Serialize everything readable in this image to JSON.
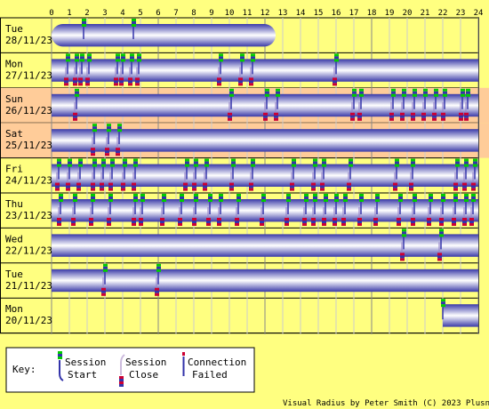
{
  "chart_data": {
    "type": "timeline",
    "title": "",
    "x_ticks": [
      "0",
      "1",
      "2",
      "3",
      "4",
      "5",
      "6",
      "7",
      "8",
      "9",
      "10",
      "11",
      "12",
      "13",
      "14",
      "15",
      "16",
      "17",
      "18",
      "19",
      "20",
      "21",
      "22",
      "23",
      "24"
    ],
    "xlim": [
      0,
      24
    ],
    "days": [
      {
        "day": "Tue",
        "date": "28/11/23",
        "weekend": false,
        "sessions": [
          [
            0,
            12.6
          ]
        ],
        "starts": [
          1.8,
          4.6
        ],
        "closes": []
      },
      {
        "day": "Mon",
        "date": "27/11/23",
        "weekend": false,
        "sessions": [
          [
            0,
            24
          ]
        ],
        "starts": [
          0.9,
          1.4,
          1.7,
          2.1,
          3.7,
          4.0,
          4.5,
          4.9,
          9.5,
          10.7,
          11.3,
          16.0
        ],
        "closes": [
          0.8,
          1.3,
          1.6,
          2.0,
          3.6,
          3.9,
          4.4,
          4.8,
          9.4,
          10.6,
          11.2,
          15.9
        ]
      },
      {
        "day": "Sun",
        "date": "26/11/23",
        "weekend": true,
        "sessions": [
          [
            0,
            24
          ]
        ],
        "starts": [
          1.4,
          10.1,
          12.1,
          12.7,
          17.0,
          17.4,
          19.2,
          19.8,
          20.4,
          21.0,
          21.6,
          22.1,
          23.1,
          23.4
        ],
        "closes": [
          1.3,
          10.0,
          12.0,
          12.6,
          16.9,
          17.3,
          19.1,
          19.7,
          20.3,
          20.9,
          21.5,
          22.0,
          23.0,
          23.3
        ]
      },
      {
        "day": "Sat",
        "date": "25/11/23",
        "weekend": true,
        "sessions": [
          [
            0,
            24
          ]
        ],
        "starts": [
          2.4,
          3.2,
          3.8
        ],
        "closes": [
          2.3,
          3.1,
          3.7
        ]
      },
      {
        "day": "Fri",
        "date": "24/11/23",
        "weekend": false,
        "sessions": [
          [
            0,
            24
          ]
        ],
        "starts": [
          0.4,
          1.0,
          1.6,
          2.4,
          2.9,
          3.4,
          4.1,
          4.7,
          7.6,
          8.1,
          8.7,
          10.2,
          11.3,
          13.6,
          14.8,
          15.3,
          16.8,
          19.4,
          20.3,
          22.8,
          23.3,
          23.8
        ],
        "closes": [
          0.3,
          0.9,
          1.5,
          2.3,
          2.8,
          3.3,
          4.0,
          4.6,
          7.5,
          8.0,
          8.6,
          10.1,
          11.2,
          13.5,
          14.7,
          15.2,
          16.7,
          19.3,
          20.2,
          22.7,
          23.2,
          23.7
        ]
      },
      {
        "day": "Thu",
        "date": "23/11/23",
        "weekend": false,
        "sessions": [
          [
            0,
            24
          ]
        ],
        "starts": [
          0.5,
          1.3,
          2.3,
          3.3,
          4.7,
          5.1,
          6.3,
          7.3,
          8.1,
          8.9,
          9.5,
          10.5,
          11.9,
          13.3,
          14.3,
          14.8,
          15.4,
          16.0,
          16.5,
          17.4,
          18.3,
          19.6,
          20.4,
          21.3,
          22.0,
          22.7,
          23.3,
          23.7
        ],
        "closes": [
          0.4,
          1.2,
          2.2,
          3.2,
          4.6,
          5.0,
          6.2,
          7.2,
          8.0,
          8.8,
          9.4,
          10.4,
          11.8,
          13.2,
          14.2,
          14.7,
          15.3,
          15.9,
          16.4,
          17.3,
          18.2,
          19.5,
          20.3,
          21.2,
          21.9,
          22.6,
          23.2,
          23.6
        ]
      },
      {
        "day": "Wed",
        "date": "22/11/23",
        "weekend": false,
        "sessions": [
          [
            0,
            24
          ]
        ],
        "starts": [
          19.8,
          21.9
        ],
        "closes": [
          19.7,
          21.8
        ]
      },
      {
        "day": "Tue",
        "date": "21/11/23",
        "weekend": false,
        "sessions": [
          [
            0,
            24
          ]
        ],
        "starts": [
          3.0,
          6.0
        ],
        "closes": [
          2.9,
          5.9
        ]
      },
      {
        "day": "Mon",
        "date": "20/11/23",
        "weekend": false,
        "sessions": [
          [
            22.0,
            24
          ]
        ],
        "starts": [
          22.0
        ],
        "closes": []
      }
    ]
  },
  "key": {
    "title": "Key:",
    "session_start": [
      "Session",
      "Start"
    ],
    "session_close": [
      "Session",
      "Close"
    ],
    "connection_failed": [
      "Connection",
      "Failed"
    ]
  },
  "credit": "Visual Radius by Peter Smith (C) 2023 Plusnet",
  "colors": {
    "background": "#ffff80",
    "weekend": "#ffcc99",
    "session_edge": "#3333aa",
    "session_mid": "#ffffff",
    "start_marker": "#00cc00",
    "close_marker": "#cc0033",
    "grid": "#999999"
  }
}
